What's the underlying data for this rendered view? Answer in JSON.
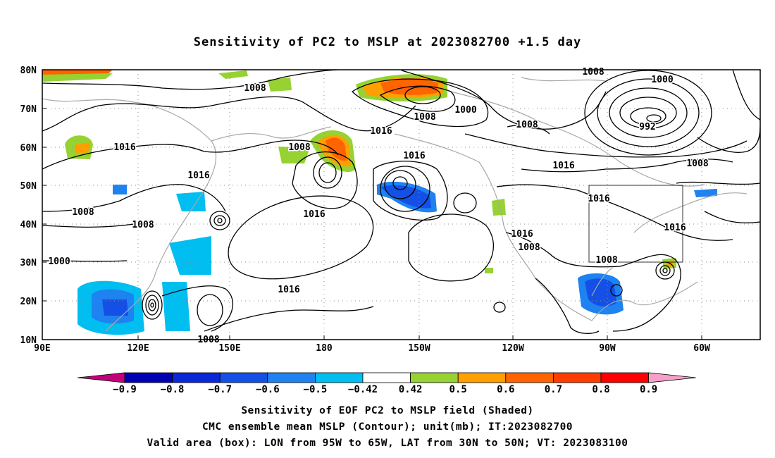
{
  "title": "Sensitivity of PC2 to MSLP at 2023082700 +1.5 day",
  "axes": {
    "lat_labels": [
      "80N",
      "70N",
      "60N",
      "50N",
      "40N",
      "30N",
      "20N",
      "10N"
    ],
    "lon_labels": [
      "90E",
      "120E",
      "150E",
      "180",
      "150W",
      "120W",
      "90W",
      "60W"
    ]
  },
  "colorbar": {
    "tick_labels": [
      "-0.9",
      "-0.8",
      "-0.7",
      "-0.6",
      "-0.5",
      "-0.42",
      "0.42",
      "0.5",
      "0.6",
      "0.7",
      "0.8",
      "0.9"
    ],
    "colors": [
      "#c2007a",
      "#0000b4",
      "#0a28d8",
      "#1450e6",
      "#1e82f0",
      "#00bef0",
      "#ffffff",
      "#96d232",
      "#ffa000",
      "#ff6400",
      "#ff3c00",
      "#ff0000",
      "#f5a0c8"
    ]
  },
  "contour_labels": [
    {
      "text": "1008",
      "id": "c1"
    },
    {
      "text": "1008",
      "id": "c2"
    },
    {
      "text": "1000",
      "id": "c3"
    },
    {
      "text": "992",
      "id": "c4"
    },
    {
      "text": "1016",
      "id": "c5"
    },
    {
      "text": "1016",
      "id": "c6"
    },
    {
      "text": "1016",
      "id": "c7"
    },
    {
      "text": "1008",
      "id": "c8"
    },
    {
      "text": "1016",
      "id": "c9"
    },
    {
      "text": "1000",
      "id": "c10"
    },
    {
      "text": "1008",
      "id": "c11"
    },
    {
      "text": "1008",
      "id": "c12"
    },
    {
      "text": "1016",
      "id": "c13"
    },
    {
      "text": "1016",
      "id": "c14"
    },
    {
      "text": "1008",
      "id": "c15"
    },
    {
      "text": "1008",
      "id": "c16"
    },
    {
      "text": "1016",
      "id": "c17"
    },
    {
      "text": "1016",
      "id": "c18"
    },
    {
      "text": "1008",
      "id": "c19"
    },
    {
      "text": "1016",
      "id": "c20"
    },
    {
      "text": "1008",
      "id": "c21"
    },
    {
      "text": "1008",
      "id": "c22"
    },
    {
      "text": "1008",
      "id": "c23"
    },
    {
      "text": "1000",
      "id": "c24"
    },
    {
      "text": "1016",
      "id": "c25"
    }
  ],
  "valid_box": {
    "lon_from": "95W",
    "lon_to": "65W",
    "lat_from": "30N",
    "lat_to": "50N"
  },
  "captions": {
    "line1": "Sensitivity of EOF PC2 to MSLP field (Shaded)",
    "line2": "CMC ensemble mean MSLP (Contour); unit(mb); IT:2023082700",
    "line3": "Valid area (box): LON from 95W to 65W, LAT from 30N to 50N; VT: 2023083100"
  }
}
